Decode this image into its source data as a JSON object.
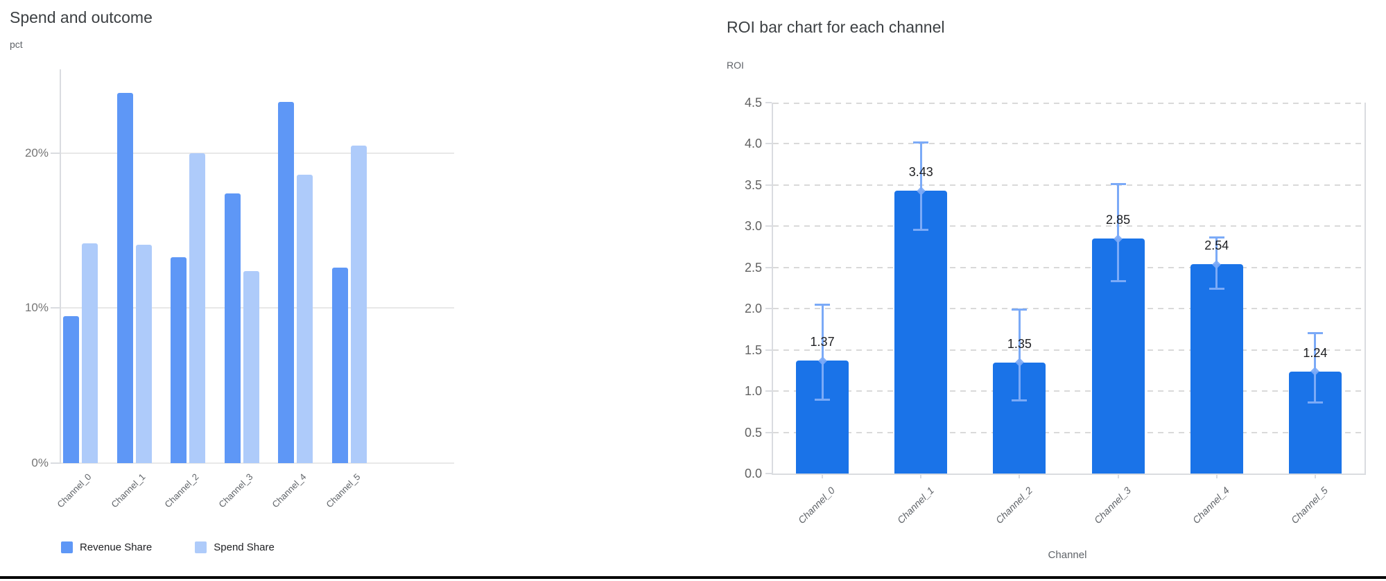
{
  "chart_data": [
    {
      "type": "bar",
      "title": "Spend and outcome",
      "ylabel": "pct",
      "xlabel": "",
      "categories": [
        "Channel_0",
        "Channel_1",
        "Channel_2",
        "Channel_3",
        "Channel_4",
        "Channel_5"
      ],
      "series": [
        {
          "name": "Revenue Share",
          "color": "#5e97f6",
          "values": [
            9.5,
            23.9,
            13.3,
            17.4,
            23.3,
            12.6
          ]
        },
        {
          "name": "Spend Share",
          "color": "#aecbfa",
          "values": [
            14.2,
            14.1,
            20.0,
            12.4,
            18.6,
            20.5
          ]
        }
      ],
      "y_ticks": [
        {
          "label": "0%",
          "value": 0
        },
        {
          "label": "10%",
          "value": 10
        },
        {
          "label": "20%",
          "value": 20
        }
      ],
      "ylim": [
        0,
        25.4
      ],
      "grid": "solid",
      "legend_position": "bottom"
    },
    {
      "type": "bar",
      "title": "ROI bar chart for each channel",
      "ylabel": "ROI",
      "xlabel": "Channel",
      "categories": [
        "Channel_0",
        "Channel_1",
        "Channel_2",
        "Channel_3",
        "Channel_4",
        "Channel_5"
      ],
      "values": [
        1.37,
        3.43,
        1.35,
        2.85,
        2.54,
        1.24
      ],
      "bar_labels": [
        "1.37",
        "3.43",
        "1.35",
        "2.85",
        "2.54",
        "1.24"
      ],
      "error_low": [
        0.89,
        2.95,
        0.88,
        2.33,
        2.24,
        0.86
      ],
      "error_high": [
        2.05,
        4.02,
        1.99,
        3.52,
        2.87,
        1.71
      ],
      "bar_color": "#1a73e8",
      "error_color": "#7baaf7",
      "y_ticks": [
        {
          "label": "0.0",
          "value": 0.0
        },
        {
          "label": "0.5",
          "value": 0.5
        },
        {
          "label": "1.0",
          "value": 1.0
        },
        {
          "label": "1.5",
          "value": 1.5
        },
        {
          "label": "2.0",
          "value": 2.0
        },
        {
          "label": "2.5",
          "value": 2.5
        },
        {
          "label": "3.0",
          "value": 3.0
        },
        {
          "label": "3.5",
          "value": 3.5
        },
        {
          "label": "4.0",
          "value": 4.0
        },
        {
          "label": "4.5",
          "value": 4.5
        }
      ],
      "ylim": [
        0,
        4.5
      ],
      "grid": "dashed",
      "legend_position": "none"
    }
  ]
}
